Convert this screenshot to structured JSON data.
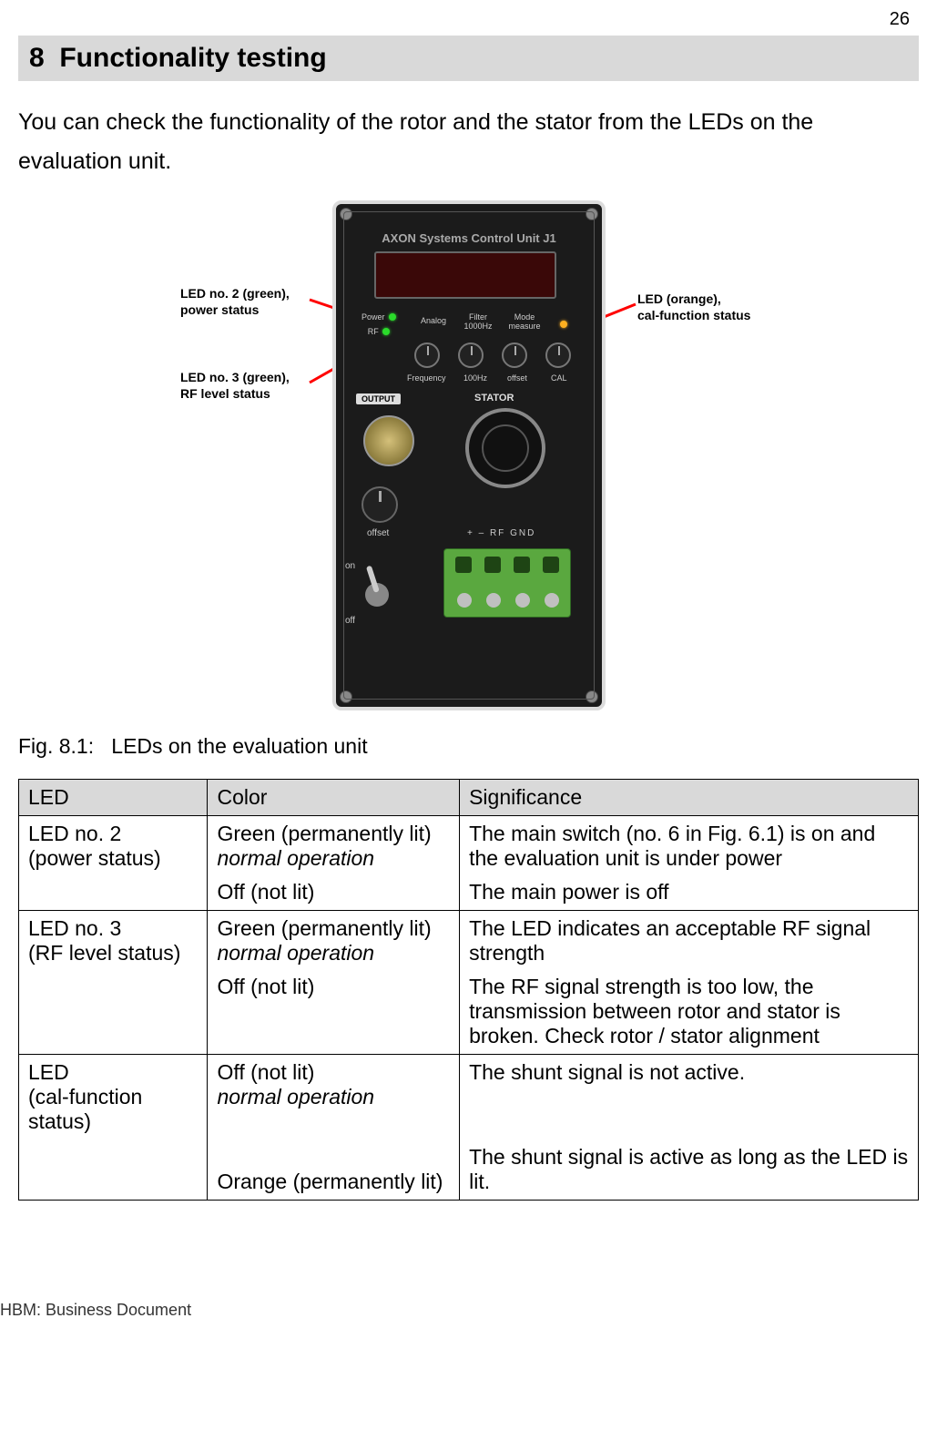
{
  "page_number": "26",
  "section": {
    "number": "8",
    "title": "Functionality testing"
  },
  "intro": "You can check the functionality of the rotor and the stator from the LEDs on the evaluation unit.",
  "figure": {
    "caption_label": "Fig. 8.1:",
    "caption_text": "LEDs on the evaluation unit",
    "device_title": "AXON Systems Control Unit J1",
    "labels": {
      "power": "Power",
      "rf": "RF",
      "analog": "Analog",
      "filter_top": "Filter",
      "filter_bot": "1000Hz",
      "mode_top": "Mode",
      "mode_bot": "measure",
      "frequency": "Frequency",
      "hz100": "100Hz",
      "offset": "offset",
      "cal": "CAL",
      "output": "OUTPUT",
      "stator": "STATOR",
      "offset_knob": "offset",
      "terminals": "+   –  RF GND",
      "on": "on",
      "off": "off"
    },
    "callouts": {
      "left_top": "LED no. 2 (green),\npower status",
      "left_bot": "LED no. 3 (green),\nRF level status",
      "right": "LED (orange),\ncal-function status"
    },
    "colors": {
      "arrow": "#ff0000",
      "led_green": "#2bdb2b",
      "led_orange": "#ffb020"
    }
  },
  "table": {
    "headers": [
      "LED",
      "Color",
      "Significance"
    ],
    "rows": [
      {
        "led": "LED no. 2\n(power status)",
        "color_main": "Green (permanently lit)",
        "color_note": "normal operation",
        "color_alt": "Off (not lit)",
        "sig_main": "The main switch (no. 6 in Fig. 6.1) is on and the evaluation unit is under power",
        "sig_alt": "The main power is off"
      },
      {
        "led": "LED no. 3\n(RF level status)",
        "color_main": "Green (permanently lit)",
        "color_note": "normal operation",
        "color_alt": "Off (not lit)",
        "sig_main": "The LED indicates an acceptable RF signal strength",
        "sig_alt": "The RF signal strength is too low, the transmission between rotor and stator is broken. Check rotor / stator alignment"
      },
      {
        "led": "LED\n(cal-function status)",
        "color_main": "Off (not lit)",
        "color_note": "normal operation",
        "color_alt": "Orange (permanently lit)",
        "sig_main": "The shunt signal is not active.",
        "sig_alt": "The shunt signal is active as long as the LED is lit.",
        "extra_gap": true
      }
    ]
  },
  "footer": "HBM: Business Document"
}
